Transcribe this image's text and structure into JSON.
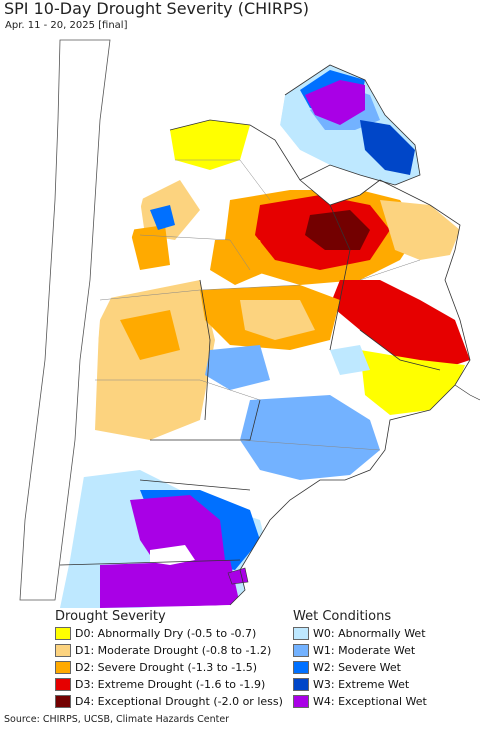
{
  "header": {
    "title": "SPI 10-Day Drought Severity (CHIRPS)",
    "subtitle": "Apr. 11 - 20, 2025 [final]"
  },
  "legend": {
    "drought": {
      "heading": "Drought Severity",
      "items": [
        {
          "label": "D0: Abnormally Dry (-0.5 to -0.7)",
          "color": "#ffff00"
        },
        {
          "label": "D1: Moderate Drought (-0.8 to -1.2)",
          "color": "#fcd37f"
        },
        {
          "label": "D2: Severe Drought (-1.3 to -1.5)",
          "color": "#ffaa00"
        },
        {
          "label": "D3: Extreme Drought (-1.6 to -1.9)",
          "color": "#e60000"
        },
        {
          "label": "D4: Exceptional Drought (-2.0 or less)",
          "color": "#730000"
        }
      ]
    },
    "wet": {
      "heading": "Wet Conditions",
      "items": [
        {
          "label": "W0: Abnormally Wet",
          "color": "#bee8ff"
        },
        {
          "label": "W1: Moderate Wet",
          "color": "#73b2ff"
        },
        {
          "label": "W2: Severe Wet",
          "color": "#0070ff"
        },
        {
          "label": "W3: Extreme Wet",
          "color": "#0046c8"
        },
        {
          "label": "W4: Exceptional Wet",
          "color": "#a900e6"
        }
      ]
    }
  },
  "footer": {
    "source": "Source: CHIRPS, UCSB, Climate Hazards Center"
  }
}
